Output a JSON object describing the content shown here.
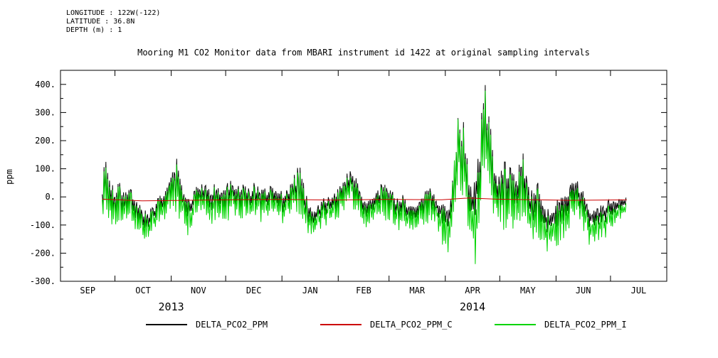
{
  "header": {
    "lines": [
      "LONGITUDE : 122W(-122)",
      "LATITUDE : 36.8N",
      "DEPTH (m) : 1"
    ]
  },
  "legend": {
    "entries": [
      {
        "label": "DELTA_PCO2_PPM",
        "color": "#000000"
      },
      {
        "label": "DELTA_PCO2_PPM_C",
        "color": "#cc0000"
      },
      {
        "label": "DELTA_PCO2_PPM_I",
        "color": "#00d400"
      }
    ]
  },
  "chart_data": {
    "type": "line",
    "title": "Mooring M1 CO2 Monitor data from MBARI instrument id 1422 at original sampling intervals",
    "xlabel": "",
    "ylabel": "ppm",
    "ylim": [
      -300,
      450
    ],
    "grid": false,
    "legend_position": "bottom",
    "y_ticks": [
      {
        "value": 400,
        "label": "400."
      },
      {
        "value": 300,
        "label": "300."
      },
      {
        "value": 200,
        "label": "200."
      },
      {
        "value": 100,
        "label": "100."
      },
      {
        "value": 0,
        "label": "0."
      },
      {
        "value": -100,
        "label": "-100."
      },
      {
        "value": -200,
        "label": "-200."
      },
      {
        "value": -300,
        "label": "-300."
      }
    ],
    "y_minor_tick_step": 50,
    "x_domain_days": [
      0,
      334
    ],
    "x_months": [
      {
        "label": "SEP",
        "start_day": 0
      },
      {
        "label": "OCT",
        "start_day": 30
      },
      {
        "label": "NOV",
        "start_day": 61
      },
      {
        "label": "DEC",
        "start_day": 91
      },
      {
        "label": "JAN",
        "start_day": 122
      },
      {
        "label": "FEB",
        "start_day": 153
      },
      {
        "label": "MAR",
        "start_day": 181
      },
      {
        "label": "APR",
        "start_day": 212
      },
      {
        "label": "MAY",
        "start_day": 242
      },
      {
        "label": "JUN",
        "start_day": 273
      },
      {
        "label": "JUL",
        "start_day": 303
      }
    ],
    "year_labels": [
      {
        "label": "2013",
        "day": 61
      },
      {
        "label": "2014",
        "day": 227
      }
    ],
    "series": [
      {
        "name": "DELTA_PCO2_PPM",
        "color": "#000000",
        "style": "noisy",
        "envelope_indices": [
          1,
          2
        ],
        "seed": 7
      },
      {
        "name": "DELTA_PCO2_PPM_C",
        "color": "#cc0000",
        "style": "line",
        "points": [
          [
            23,
            -8
          ],
          [
            45,
            -14
          ],
          [
            70,
            -12
          ],
          [
            95,
            -10
          ],
          [
            122,
            -9
          ],
          [
            150,
            -11
          ],
          [
            180,
            -9
          ],
          [
            210,
            -10
          ],
          [
            225,
            -4
          ],
          [
            240,
            -8
          ],
          [
            260,
            -10
          ],
          [
            280,
            -12
          ],
          [
            300,
            -11
          ],
          [
            312,
            -10
          ]
        ]
      },
      {
        "name": "DELTA_PCO2_PPM_I",
        "color": "#00d400",
        "style": "noisy",
        "envelope_indices": [
          3,
          4
        ],
        "seed": 7
      }
    ],
    "noise_envelope_columns": [
      "day_from_sep1_2013",
      "ppm_lo",
      "ppm_hi",
      "ppm_i_lo",
      "ppm_i_hi"
    ],
    "noise_envelope": [
      [
        23,
        -30,
        40,
        -60,
        30
      ],
      [
        25,
        -60,
        175,
        -80,
        155
      ],
      [
        27,
        -70,
        90,
        -100,
        70
      ],
      [
        30,
        -80,
        30,
        -120,
        20
      ],
      [
        33,
        -60,
        60,
        -90,
        50
      ],
      [
        36,
        -70,
        20,
        -110,
        10
      ],
      [
        39,
        -40,
        30,
        -80,
        20
      ],
      [
        42,
        -90,
        -10,
        -130,
        -20
      ],
      [
        45,
        -110,
        -40,
        -150,
        -50
      ],
      [
        48,
        -120,
        -50,
        -160,
        -60
      ],
      [
        51,
        -100,
        -30,
        -140,
        -40
      ],
      [
        54,
        -80,
        0,
        -120,
        -10
      ],
      [
        57,
        -60,
        20,
        -100,
        10
      ],
      [
        60,
        -40,
        60,
        -70,
        50
      ],
      [
        63,
        -20,
        160,
        -50,
        140
      ],
      [
        65,
        -40,
        120,
        -70,
        100
      ],
      [
        68,
        -80,
        10,
        -130,
        0
      ],
      [
        71,
        -70,
        -10,
        -150,
        -20
      ],
      [
        74,
        -50,
        30,
        -90,
        20
      ],
      [
        77,
        -40,
        50,
        -80,
        40
      ],
      [
        80,
        -30,
        60,
        -70,
        50
      ],
      [
        83,
        -50,
        40,
        -100,
        30
      ],
      [
        86,
        -40,
        50,
        -80,
        40
      ],
      [
        89,
        -60,
        20,
        -110,
        10
      ],
      [
        92,
        -50,
        60,
        -90,
        50
      ],
      [
        95,
        -40,
        70,
        -80,
        60
      ],
      [
        98,
        -60,
        40,
        -100,
        30
      ],
      [
        101,
        -50,
        50,
        -90,
        40
      ],
      [
        104,
        -60,
        30,
        -100,
        20
      ],
      [
        107,
        -40,
        60,
        -80,
        50
      ],
      [
        110,
        -50,
        40,
        -90,
        30
      ],
      [
        113,
        -60,
        30,
        -110,
        20
      ],
      [
        116,
        -40,
        50,
        -80,
        40
      ],
      [
        119,
        -50,
        40,
        -90,
        30
      ],
      [
        122,
        -60,
        20,
        -100,
        10
      ],
      [
        125,
        -50,
        30,
        -90,
        20
      ],
      [
        128,
        -40,
        60,
        -80,
        50
      ],
      [
        131,
        -30,
        130,
        -60,
        115
      ],
      [
        133,
        -50,
        90,
        -90,
        70
      ],
      [
        136,
        -90,
        -10,
        -130,
        -20
      ],
      [
        139,
        -110,
        -40,
        -150,
        -50
      ],
      [
        142,
        -90,
        -20,
        -130,
        -30
      ],
      [
        145,
        -70,
        0,
        -110,
        -10
      ],
      [
        148,
        -60,
        10,
        -100,
        0
      ],
      [
        151,
        -50,
        20,
        -90,
        10
      ],
      [
        154,
        -40,
        40,
        -70,
        30
      ],
      [
        157,
        -20,
        80,
        -50,
        70
      ],
      [
        160,
        -10,
        140,
        -40,
        120
      ],
      [
        162,
        -30,
        100,
        -60,
        80
      ],
      [
        165,
        -60,
        20,
        -100,
        10
      ],
      [
        168,
        -80,
        -10,
        -120,
        -20
      ],
      [
        171,
        -70,
        0,
        -110,
        -10
      ],
      [
        174,
        -50,
        30,
        -90,
        20
      ],
      [
        177,
        -40,
        50,
        -80,
        40
      ],
      [
        180,
        -50,
        40,
        -90,
        30
      ],
      [
        183,
        -60,
        20,
        -100,
        10
      ],
      [
        186,
        -80,
        0,
        -120,
        -10
      ],
      [
        189,
        -70,
        10,
        -110,
        0
      ],
      [
        192,
        -90,
        -20,
        -130,
        -30
      ],
      [
        195,
        -100,
        -30,
        -150,
        -40
      ],
      [
        198,
        -80,
        -10,
        -120,
        -20
      ],
      [
        201,
        -60,
        20,
        -100,
        10
      ],
      [
        204,
        -50,
        40,
        -90,
        30
      ],
      [
        207,
        -70,
        10,
        -110,
        0
      ],
      [
        210,
        -90,
        -20,
        -160,
        -30
      ],
      [
        213,
        -120,
        -40,
        -230,
        -60
      ],
      [
        215,
        -100,
        0,
        -180,
        -20
      ],
      [
        217,
        -40,
        150,
        -60,
        170
      ],
      [
        219,
        0,
        430,
        -20,
        435
      ],
      [
        221,
        -20,
        350,
        -40,
        330
      ],
      [
        223,
        -40,
        200,
        -60,
        180
      ],
      [
        225,
        -60,
        100,
        -120,
        80
      ],
      [
        227,
        -80,
        50,
        -180,
        30
      ],
      [
        229,
        -60,
        150,
        -260,
        130
      ],
      [
        231,
        -40,
        250,
        -100,
        230
      ],
      [
        233,
        0,
        420,
        -30,
        400
      ],
      [
        235,
        -20,
        380,
        -50,
        360
      ],
      [
        237,
        -40,
        250,
        -80,
        230
      ],
      [
        239,
        -60,
        150,
        -100,
        130
      ],
      [
        242,
        -80,
        100,
        -140,
        80
      ],
      [
        245,
        -60,
        180,
        -110,
        160
      ],
      [
        248,
        -80,
        120,
        -150,
        100
      ],
      [
        251,
        -100,
        60,
        -190,
        40
      ],
      [
        254,
        -70,
        190,
        -130,
        170
      ],
      [
        257,
        -90,
        80,
        -160,
        60
      ],
      [
        260,
        -110,
        20,
        -190,
        0
      ],
      [
        263,
        -90,
        50,
        -150,
        30
      ],
      [
        266,
        -120,
        -20,
        -200,
        -40
      ],
      [
        269,
        -140,
        -40,
        -210,
        -60
      ],
      [
        272,
        -120,
        -20,
        -190,
        -40
      ],
      [
        275,
        -100,
        0,
        -170,
        -20
      ],
      [
        278,
        -80,
        20,
        -140,
        0
      ],
      [
        281,
        -60,
        60,
        -110,
        40
      ],
      [
        284,
        -40,
        90,
        -80,
        70
      ],
      [
        287,
        -60,
        40,
        -100,
        20
      ],
      [
        290,
        -100,
        -20,
        -160,
        -40
      ],
      [
        293,
        -120,
        -40,
        -190,
        -60
      ],
      [
        296,
        -110,
        -30,
        -170,
        -50
      ],
      [
        299,
        -100,
        -20,
        -160,
        -40
      ],
      [
        302,
        -80,
        -10,
        -130,
        -30
      ],
      [
        305,
        -60,
        0,
        -100,
        -20
      ],
      [
        308,
        -50,
        -10,
        -80,
        -30
      ],
      [
        312,
        -40,
        0,
        -70,
        -20
      ]
    ]
  }
}
